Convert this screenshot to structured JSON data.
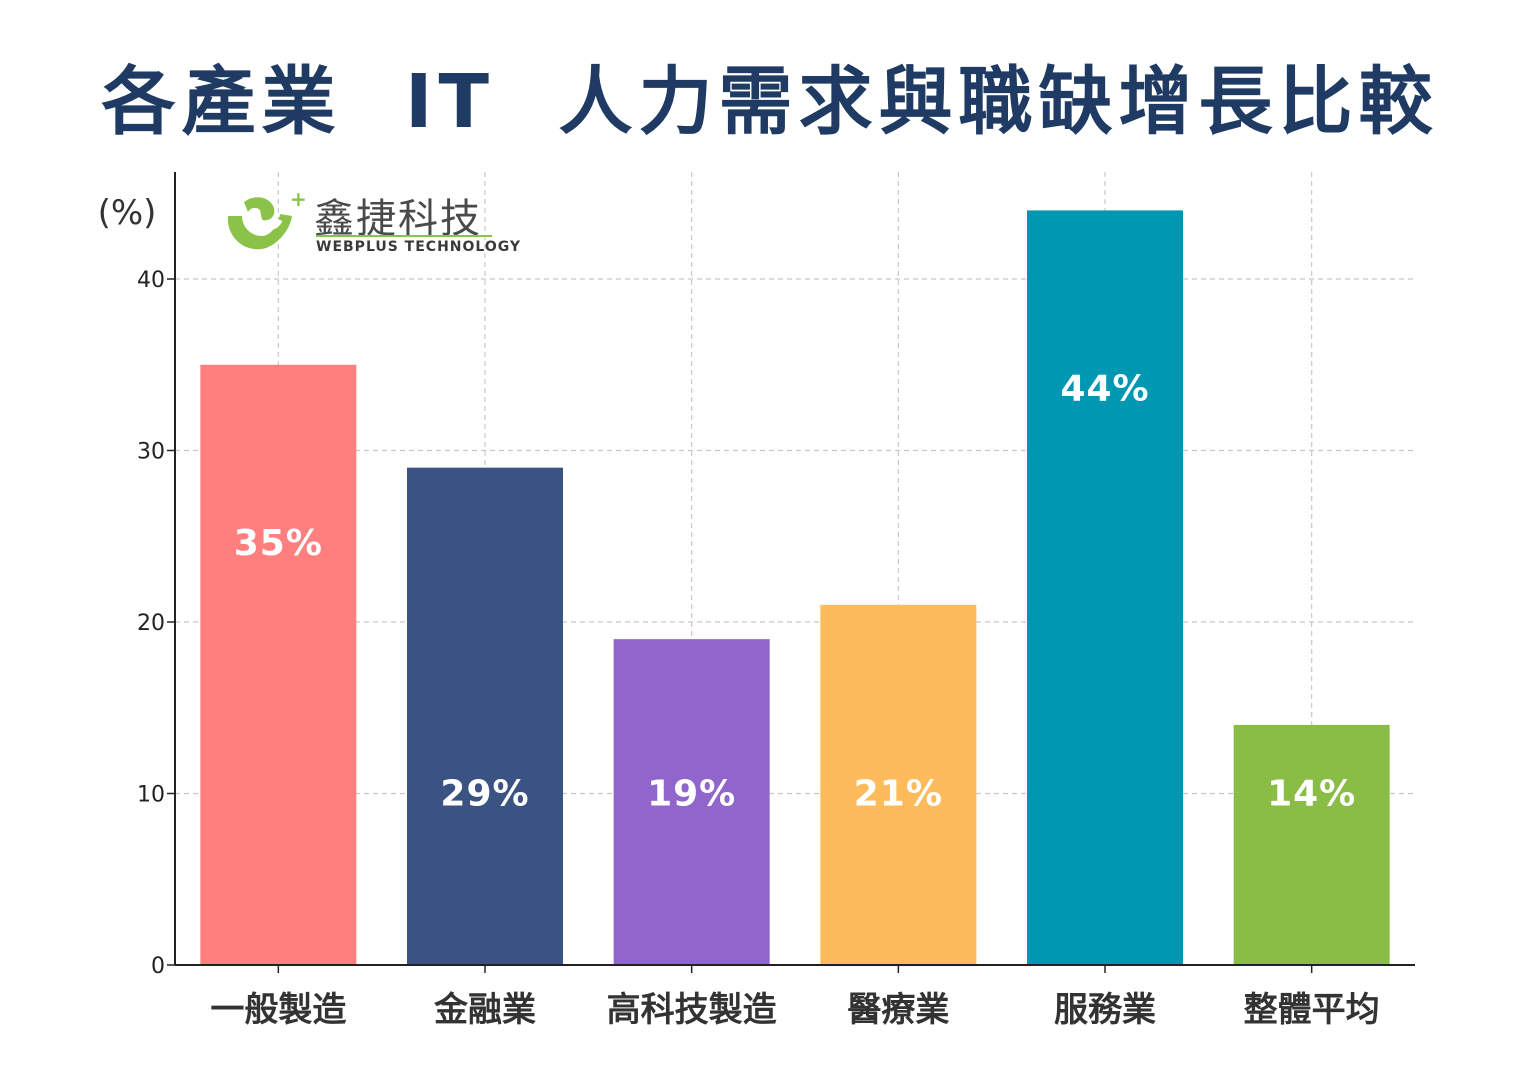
{
  "title": "各產業  IT  人力需求與職缺增長比較",
  "logo": {
    "name_cn": "鑫捷科技",
    "name_en": "WEBPLUS TECHNOLOGY"
  },
  "chart_data": {
    "type": "bar",
    "title": "各產業  IT  人力需求與職缺增長比較",
    "ylabel": "(%)",
    "xlabel": "",
    "categories": [
      "一般製造",
      "金融業",
      "高科技製造",
      "醫療業",
      "服務業",
      "整體平均"
    ],
    "values": [
      35,
      29,
      19,
      21,
      44,
      14
    ],
    "data_labels": [
      "35%",
      "29%",
      "19%",
      "21%",
      "44%",
      "14%"
    ],
    "colors": [
      "#ff7f7f",
      "#3b5382",
      "#9066cc",
      "#fdbb5b",
      "#0097b2",
      "#8abd45"
    ],
    "ylim": [
      0,
      46
    ],
    "yticks": [
      0,
      10,
      20,
      30,
      40
    ],
    "grid": true
  }
}
